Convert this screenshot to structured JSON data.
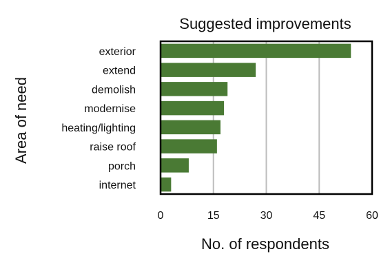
{
  "chart_data": {
    "type": "bar",
    "orientation": "horizontal",
    "title": "Suggested improvements",
    "xlabel": "No. of respondents",
    "ylabel": "Area of need",
    "categories": [
      "exterior",
      "extend",
      "demolish",
      "modernise",
      "heating/lighting",
      "raise roof",
      "porch",
      "internet"
    ],
    "values": [
      54,
      27,
      19,
      18,
      17,
      16,
      8,
      3
    ],
    "xlim": [
      0,
      60
    ],
    "xticks": [
      "0",
      "15",
      "30",
      "45",
      "60"
    ],
    "grid": "vertical",
    "bar_color": "#4a7a34"
  }
}
